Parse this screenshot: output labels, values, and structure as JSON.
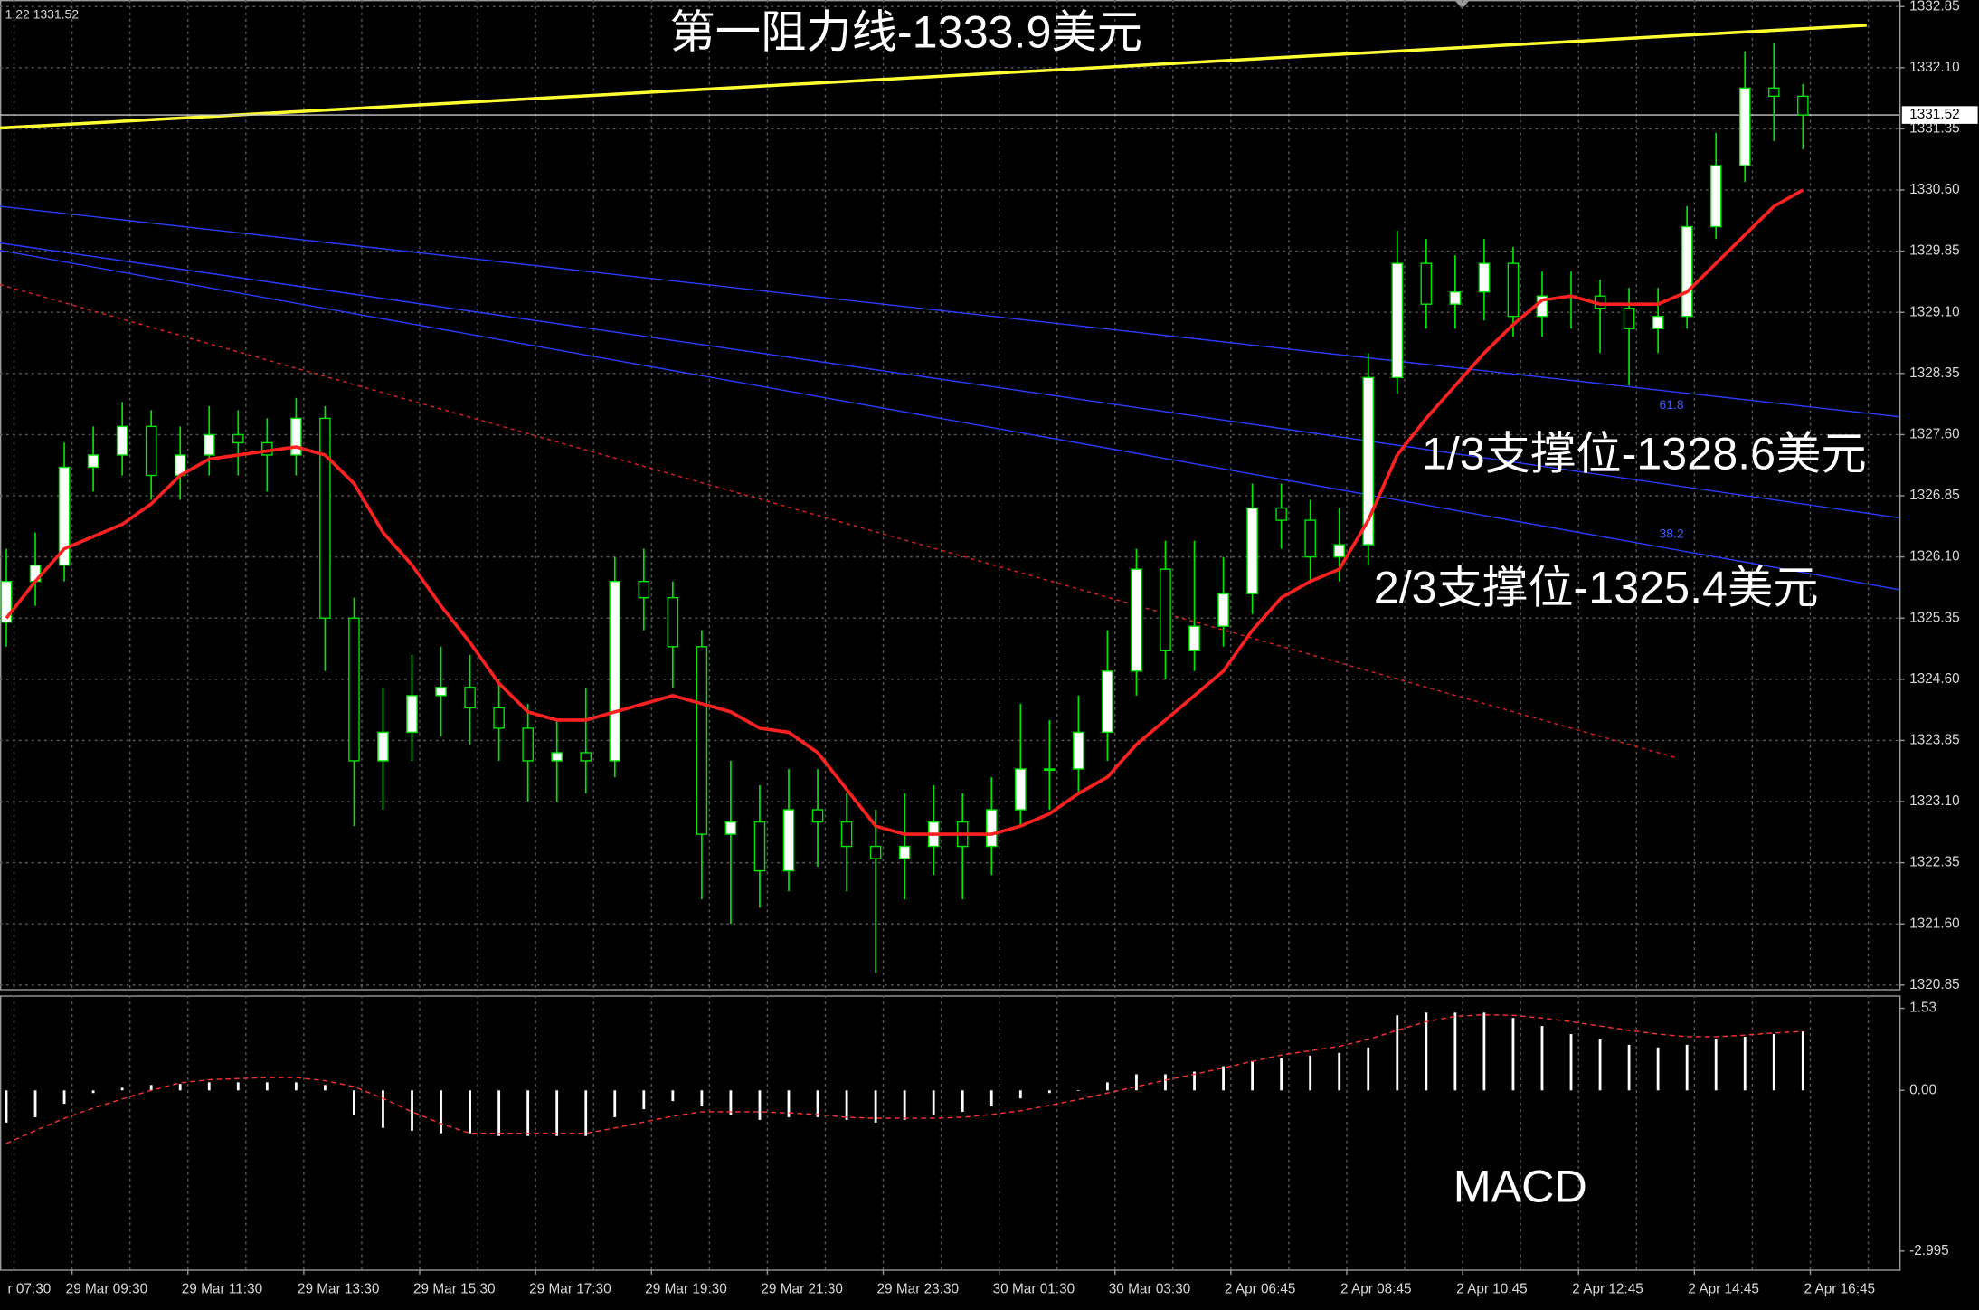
{
  "chart_data": {
    "type": "candlestick",
    "header_text": "1,22 1331.52",
    "annotations": [
      "第一阻力线-1333.9美元",
      "1/3支撑位-1328.6美元",
      "2/3支撑位-1325.4美元"
    ],
    "fib_labels": [
      "61.8",
      "38.2"
    ],
    "open": [
      1325.3,
      1325.8,
      1326.0,
      1327.2,
      1327.35,
      1327.7,
      1327.1,
      1327.35,
      1327.6,
      1327.5,
      1327.35,
      1327.8,
      1325.35,
      1323.6,
      1323.95,
      1324.4,
      1324.5,
      1324.25,
      1324.0,
      1323.6,
      1323.7,
      1323.6,
      1325.8,
      1325.6,
      1325.0,
      1322.7,
      1322.85,
      1322.25,
      1323.0,
      1322.85,
      1322.55,
      1322.4,
      1322.55,
      1322.85,
      1322.55,
      1323.0,
      1323.5,
      1323.5,
      1323.95,
      1324.7,
      1325.95,
      1324.95,
      1325.25,
      1325.65,
      1326.7,
      1326.55,
      1326.1,
      1326.25,
      1328.3,
      1329.7,
      1329.2,
      1329.35,
      1329.7,
      1329.05,
      1329.3,
      1329.3,
      1329.15,
      1328.9,
      1329.05,
      1330.15,
      1330.9,
      1331.85,
      1331.75
    ],
    "high": [
      1326.2,
      1326.4,
      1327.5,
      1327.7,
      1328.0,
      1327.9,
      1327.7,
      1327.95,
      1327.9,
      1327.8,
      1328.05,
      1327.95,
      1325.6,
      1324.5,
      1324.9,
      1325.0,
      1324.9,
      1324.6,
      1324.3,
      1324.1,
      1324.5,
      1326.1,
      1326.2,
      1325.8,
      1325.2,
      1323.6,
      1323.3,
      1323.5,
      1323.5,
      1323.2,
      1323.0,
      1323.2,
      1323.3,
      1323.2,
      1323.4,
      1324.3,
      1324.1,
      1324.4,
      1325.2,
      1326.2,
      1326.3,
      1326.3,
      1326.1,
      1327.0,
      1327.0,
      1326.8,
      1326.7,
      1328.6,
      1330.1,
      1330.0,
      1329.8,
      1330.0,
      1329.9,
      1329.6,
      1329.6,
      1329.5,
      1329.4,
      1329.4,
      1330.4,
      1331.3,
      1332.3,
      1332.4,
      1331.9
    ],
    "low": [
      1325.0,
      1325.5,
      1325.8,
      1326.9,
      1327.1,
      1326.8,
      1326.8,
      1327.1,
      1327.1,
      1326.9,
      1327.1,
      1324.7,
      1322.8,
      1323.0,
      1323.6,
      1323.9,
      1323.8,
      1323.6,
      1323.1,
      1323.1,
      1323.2,
      1323.4,
      1325.2,
      1324.5,
      1321.9,
      1321.6,
      1321.8,
      1322.0,
      1322.3,
      1322.0,
      1321.0,
      1321.9,
      1322.2,
      1321.9,
      1322.2,
      1322.8,
      1323.0,
      1323.2,
      1323.6,
      1324.4,
      1324.6,
      1324.7,
      1325.0,
      1325.4,
      1326.2,
      1325.8,
      1325.8,
      1326.0,
      1328.1,
      1328.9,
      1328.9,
      1329.0,
      1328.8,
      1328.8,
      1328.9,
      1328.6,
      1328.2,
      1328.6,
      1328.9,
      1330.0,
      1330.7,
      1331.2,
      1331.1
    ],
    "close": [
      1325.8,
      1326.0,
      1327.2,
      1327.35,
      1327.7,
      1327.1,
      1327.35,
      1327.6,
      1327.5,
      1327.35,
      1327.8,
      1325.35,
      1323.6,
      1323.95,
      1324.4,
      1324.5,
      1324.25,
      1324.0,
      1323.6,
      1323.7,
      1323.6,
      1325.8,
      1325.6,
      1325.0,
      1322.7,
      1322.85,
      1322.25,
      1323.0,
      1322.85,
      1322.55,
      1322.4,
      1322.55,
      1322.85,
      1322.55,
      1323.0,
      1323.5,
      1323.5,
      1323.95,
      1324.7,
      1325.95,
      1324.95,
      1325.25,
      1325.65,
      1326.7,
      1326.55,
      1326.1,
      1326.25,
      1328.3,
      1329.7,
      1329.2,
      1329.35,
      1329.7,
      1329.05,
      1329.3,
      1329.3,
      1329.15,
      1328.9,
      1329.05,
      1330.15,
      1330.9,
      1331.85,
      1331.75,
      1331.52
    ],
    "up_color": "#ffffff",
    "down_color": "#000000",
    "wick_color": "#00e600",
    "ma": {
      "color": "#ff2020",
      "values": [
        1325.35,
        1325.8,
        1326.2,
        1326.35,
        1326.5,
        1326.75,
        1327.1,
        1327.3,
        1327.35,
        1327.4,
        1327.45,
        1327.35,
        1327.0,
        1326.4,
        1326.0,
        1325.5,
        1325.05,
        1324.55,
        1324.2,
        1324.1,
        1324.1,
        1324.2,
        1324.3,
        1324.4,
        1324.3,
        1324.2,
        1324.0,
        1323.95,
        1323.7,
        1323.25,
        1322.8,
        1322.7,
        1322.7,
        1322.7,
        1322.7,
        1322.8,
        1322.95,
        1323.2,
        1323.4,
        1323.8,
        1324.1,
        1324.4,
        1324.7,
        1325.2,
        1325.6,
        1325.8,
        1325.95,
        1326.55,
        1327.35,
        1327.8,
        1328.2,
        1328.6,
        1328.95,
        1329.25,
        1329.3,
        1329.2,
        1329.2,
        1329.2,
        1329.35,
        1329.7,
        1330.05,
        1330.4,
        1330.6
      ]
    },
    "current_price": 1331.52,
    "trendlines": [
      {
        "color": "#ffff33",
        "style": "solid",
        "start": [
          -0.22,
          1331.36
        ],
        "end": [
          64.2,
          1332.62
        ]
      },
      {
        "color": "#2a3cff",
        "style": "solid",
        "start": [
          -0.22,
          1330.4
        ],
        "end": [
          65.3,
          1327.82
        ]
      },
      {
        "color": "#2a3cff",
        "style": "solid",
        "start": [
          -0.22,
          1329.95
        ],
        "end": [
          65.3,
          1326.58
        ]
      },
      {
        "color": "#2a3cff",
        "style": "solid",
        "start": [
          -0.22,
          1329.86
        ],
        "end": [
          65.3,
          1325.7
        ]
      },
      {
        "color": "#e02020",
        "style": "dotted",
        "start": [
          -0.22,
          1329.44
        ],
        "end": [
          57.6,
          1323.64
        ]
      }
    ],
    "ylim": [
      1320.8,
      1332.93
    ],
    "yticks": [
      1332.85,
      {
        "value": 1332.1,
        "label": "1332.10"
      },
      1331.35,
      {
        "value": 1330.6,
        "label": "1330.60"
      },
      1329.85,
      {
        "value": 1329.1,
        "label": "1329.10"
      },
      1328.35,
      {
        "value": 1327.6,
        "label": "1327.60"
      },
      1326.85,
      {
        "value": 1326.1,
        "label": "1326.10"
      },
      1325.35,
      {
        "value": 1324.6,
        "label": "1324.60"
      },
      1323.85,
      {
        "value": 1323.1,
        "label": "1323.10"
      },
      1322.35,
      {
        "value": 1321.6,
        "label": "1321.60"
      },
      1320.85
    ],
    "xticks": [
      "r 07:30",
      "29 Mar 09:30",
      "29 Mar 11:30",
      "29 Mar 13:30",
      "29 Mar 15:30",
      "29 Mar 17:30",
      "29 Mar 19:30",
      "29 Mar 21:30",
      "29 Mar 23:30",
      "30 Mar 01:30",
      "30 Mar 03:30",
      "2 Apr 06:45",
      "2 Apr 08:45",
      "2 Apr 10:45",
      "2 Apr 12:45",
      "2 Apr 14:45",
      "2 Apr 16:45"
    ],
    "grid": true,
    "macd": {
      "title": "MACD",
      "hist_color": "#ffffff",
      "signal_color": "#ff3030",
      "histogram": [
        -0.6,
        -0.5,
        -0.25,
        -0.05,
        0.05,
        0.1,
        0.12,
        0.15,
        0.15,
        0.15,
        0.15,
        0.1,
        -0.45,
        -0.7,
        -0.75,
        -0.8,
        -0.8,
        -0.85,
        -0.85,
        -0.85,
        -0.85,
        -0.5,
        -0.35,
        -0.2,
        -0.3,
        -0.45,
        -0.55,
        -0.5,
        -0.5,
        -0.55,
        -0.6,
        -0.55,
        -0.45,
        -0.4,
        -0.3,
        -0.15,
        -0.05,
        0.0,
        0.15,
        0.3,
        0.3,
        0.35,
        0.45,
        0.55,
        0.6,
        0.65,
        0.7,
        0.8,
        1.4,
        1.45,
        1.45,
        1.45,
        1.35,
        1.2,
        1.05,
        0.95,
        0.85,
        0.8,
        0.85,
        0.95,
        1.0,
        1.05,
        1.1
      ],
      "signal": [
        -0.99,
        -0.75,
        -0.52,
        -0.33,
        -0.16,
        0.0,
        0.14,
        0.2,
        0.22,
        0.24,
        0.24,
        0.18,
        0.07,
        -0.15,
        -0.4,
        -0.62,
        -0.8,
        -0.8,
        -0.8,
        -0.8,
        -0.8,
        -0.7,
        -0.59,
        -0.48,
        -0.4,
        -0.4,
        -0.4,
        -0.42,
        -0.45,
        -0.5,
        -0.52,
        -0.52,
        -0.52,
        -0.5,
        -0.45,
        -0.38,
        -0.28,
        -0.17,
        -0.05,
        0.07,
        0.19,
        0.3,
        0.42,
        0.54,
        0.66,
        0.74,
        0.82,
        0.95,
        1.12,
        1.28,
        1.38,
        1.41,
        1.4,
        1.35,
        1.28,
        1.2,
        1.12,
        1.05,
        1.0,
        1.0,
        1.03,
        1.07,
        1.1
      ],
      "ylim": [
        -3.34,
        1.77
      ],
      "yticks": [
        1.53,
        {
          "value": 0,
          "label": "0.00"
        },
        -2.995
      ]
    }
  }
}
